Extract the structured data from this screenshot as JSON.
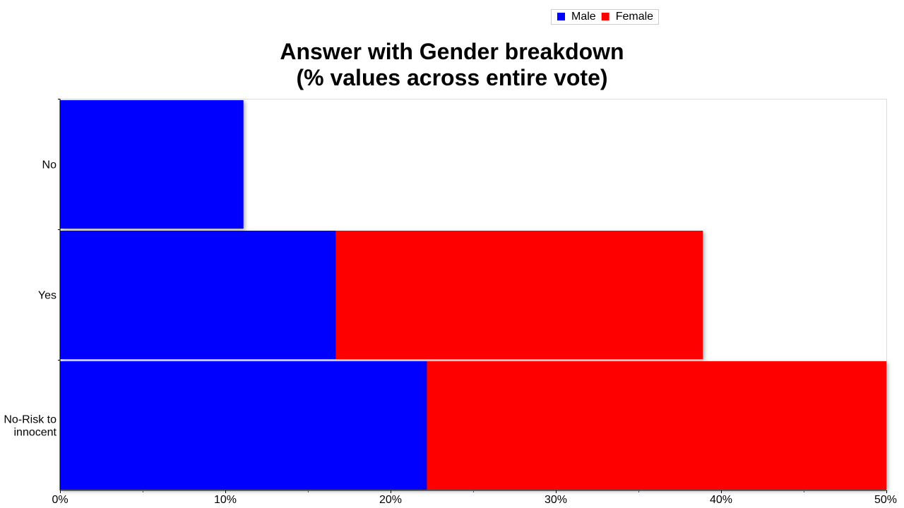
{
  "chart_data": {
    "type": "bar",
    "orientation": "horizontal",
    "stacked": true,
    "title": [
      "Answer with Gender breakdown",
      "(% values across entire vote)"
    ],
    "categories": [
      "No",
      [
        "Yes"
      ],
      [
        "No-Risk to",
        "innocent"
      ]
    ],
    "series": [
      {
        "name": "Male",
        "color": "#0000ff",
        "values": [
          11.1,
          16.7,
          22.2
        ]
      },
      {
        "name": "Female",
        "color": "#ff0000",
        "values": [
          0,
          22.2,
          27.8
        ]
      }
    ],
    "xlim": [
      0,
      50
    ],
    "xticks": [
      0,
      10,
      20,
      30,
      40,
      50
    ],
    "xtick_labels": [
      "0%",
      "10%",
      "20%",
      "30%",
      "40%",
      "50%"
    ],
    "legend_position": "top-right",
    "grid": false
  }
}
